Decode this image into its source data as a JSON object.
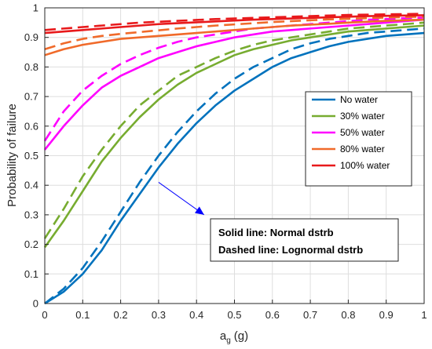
{
  "chart_data": {
    "type": "line",
    "xlabel": "a",
    "xlabel_sub": "g",
    "xlabel_unit": "(g)",
    "ylabel": "Probability of failure",
    "xlim": [
      0,
      1
    ],
    "ylim": [
      0,
      1
    ],
    "xticks": [
      "0",
      "0.1",
      "0.2",
      "0.3",
      "0.4",
      "0.5",
      "0.6",
      "0.7",
      "0.8",
      "0.9",
      "1"
    ],
    "yticks": [
      "0",
      "0.1",
      "0.2",
      "0.3",
      "0.4",
      "0.5",
      "0.6",
      "0.7",
      "0.8",
      "0.9",
      "1"
    ],
    "grid": true,
    "legend_position": "right",
    "x": [
      0,
      0.05,
      0.1,
      0.15,
      0.2,
      0.25,
      0.3,
      0.35,
      0.4,
      0.45,
      0.5,
      0.55,
      0.6,
      0.65,
      0.7,
      0.75,
      0.8,
      0.85,
      0.9,
      0.95,
      1.0
    ],
    "series": [
      {
        "name": "No water",
        "color": "#0072BD",
        "style": "solid",
        "values": [
          0.0,
          0.04,
          0.1,
          0.18,
          0.28,
          0.37,
          0.46,
          0.54,
          0.61,
          0.67,
          0.72,
          0.76,
          0.8,
          0.83,
          0.85,
          0.87,
          0.885,
          0.895,
          0.905,
          0.91,
          0.915
        ]
      },
      {
        "name": "",
        "color": "#0072BD",
        "style": "dashed",
        "values": [
          0.0,
          0.05,
          0.12,
          0.21,
          0.31,
          0.41,
          0.5,
          0.58,
          0.65,
          0.71,
          0.76,
          0.8,
          0.83,
          0.86,
          0.88,
          0.895,
          0.905,
          0.915,
          0.92,
          0.925,
          0.93
        ]
      },
      {
        "name": "30% water",
        "color": "#77AC30",
        "style": "solid",
        "values": [
          0.19,
          0.28,
          0.38,
          0.48,
          0.56,
          0.63,
          0.69,
          0.74,
          0.78,
          0.81,
          0.84,
          0.86,
          0.875,
          0.89,
          0.9,
          0.91,
          0.92,
          0.925,
          0.93,
          0.935,
          0.94
        ]
      },
      {
        "name": "",
        "color": "#77AC30",
        "style": "dashed",
        "values": [
          0.22,
          0.32,
          0.43,
          0.52,
          0.6,
          0.67,
          0.72,
          0.77,
          0.8,
          0.83,
          0.855,
          0.875,
          0.89,
          0.9,
          0.91,
          0.92,
          0.93,
          0.935,
          0.94,
          0.945,
          0.95
        ]
      },
      {
        "name": "50% water",
        "color": "#FF00FF",
        "style": "solid",
        "values": [
          0.52,
          0.6,
          0.67,
          0.73,
          0.77,
          0.8,
          0.83,
          0.85,
          0.87,
          0.885,
          0.9,
          0.91,
          0.92,
          0.925,
          0.93,
          0.935,
          0.94,
          0.945,
          0.95,
          0.955,
          0.96
        ]
      },
      {
        "name": "",
        "color": "#FF00FF",
        "style": "dashed",
        "values": [
          0.55,
          0.65,
          0.72,
          0.77,
          0.81,
          0.84,
          0.865,
          0.885,
          0.9,
          0.91,
          0.92,
          0.93,
          0.935,
          0.94,
          0.945,
          0.95,
          0.955,
          0.96,
          0.962,
          0.965,
          0.967
        ]
      },
      {
        "name": "80% water",
        "color": "#F06A2A",
        "style": "solid",
        "values": [
          0.84,
          0.86,
          0.875,
          0.885,
          0.895,
          0.9,
          0.905,
          0.91,
          0.915,
          0.92,
          0.925,
          0.93,
          0.935,
          0.94,
          0.943,
          0.946,
          0.95,
          0.953,
          0.956,
          0.958,
          0.96
        ]
      },
      {
        "name": "",
        "color": "#F06A2A",
        "style": "dashed",
        "values": [
          0.86,
          0.88,
          0.895,
          0.905,
          0.912,
          0.918,
          0.924,
          0.93,
          0.935,
          0.94,
          0.944,
          0.948,
          0.952,
          0.955,
          0.958,
          0.961,
          0.963,
          0.965,
          0.967,
          0.969,
          0.97
        ]
      },
      {
        "name": "100% water",
        "color": "#E8191B",
        "style": "solid",
        "values": [
          0.915,
          0.92,
          0.925,
          0.93,
          0.935,
          0.94,
          0.945,
          0.948,
          0.951,
          0.954,
          0.957,
          0.96,
          0.962,
          0.964,
          0.966,
          0.968,
          0.97,
          0.972,
          0.973,
          0.974,
          0.975
        ]
      },
      {
        "name": "",
        "color": "#E8191B",
        "style": "dashed",
        "values": [
          0.925,
          0.93,
          0.935,
          0.94,
          0.945,
          0.95,
          0.953,
          0.956,
          0.959,
          0.962,
          0.964,
          0.966,
          0.968,
          0.97,
          0.972,
          0.974,
          0.976,
          0.977,
          0.978,
          0.979,
          0.98
        ]
      }
    ],
    "annotation": {
      "lines": [
        "Solid line: Normal dstrb",
        "Dashed line: Lognormal dstrb"
      ],
      "arrow_from": [
        0.3,
        0.41
      ],
      "arrow_to": [
        0.42,
        0.3
      ],
      "arrow_color": "#0000FF"
    }
  }
}
